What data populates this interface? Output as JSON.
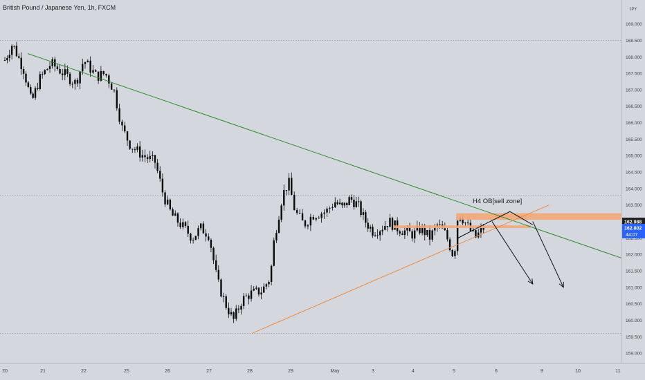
{
  "title": "British Pound / Japanese Yen, 1h, FXCM",
  "currency": "JPY",
  "colors": {
    "background": "#d4d7dd",
    "candle": "#0a0a0a",
    "trendline_down": "#2e8b2e",
    "trendline_up": "#f08a3c",
    "zone": "#f2a877",
    "arrow": "#111111",
    "price_tag": "#1f1f1f",
    "live_tag": "#2962ff",
    "axis_text": "#444444",
    "reference_line": "#8c8f96"
  },
  "chart_data": {
    "type": "candlestick",
    "title": "British Pound / Japanese Yen, 1h, FXCM",
    "y_unit": "JPY",
    "ylim": [
      158.5,
      169.6
    ],
    "y_ticks": [
      "169.000",
      "168.500",
      "168.000",
      "167.500",
      "167.000",
      "166.500",
      "166.000",
      "165.500",
      "165.000",
      "164.500",
      "164.000",
      "163.500",
      "163.000",
      "162.500",
      "162.000",
      "161.500",
      "161.000",
      "160.500",
      "160.000",
      "159.500",
      "159.000"
    ],
    "x_ticks": [
      "20",
      "21",
      "22",
      "25",
      "26",
      "27",
      "28",
      "29",
      "May",
      "3",
      "4",
      "5",
      "6",
      "9",
      "10",
      "11"
    ],
    "price_path": [
      [
        20.0,
        167.9
      ],
      [
        20.2,
        168.4
      ],
      [
        20.5,
        167.6
      ],
      [
        20.7,
        166.6
      ],
      [
        20.9,
        167.3
      ],
      [
        21.2,
        167.8
      ],
      [
        21.5,
        167.5
      ],
      [
        21.8,
        167.2
      ],
      [
        22.0,
        167.9
      ],
      [
        22.3,
        167.4
      ],
      [
        22.5,
        167.5
      ],
      [
        22.7,
        167.0
      ],
      [
        22.9,
        165.8
      ],
      [
        23.1,
        165.3
      ],
      [
        23.4,
        165.0
      ],
      [
        23.7,
        164.8
      ],
      [
        23.9,
        163.8
      ],
      [
        24.1,
        163.2
      ],
      [
        24.4,
        162.8
      ],
      [
        24.6,
        162.5
      ],
      [
        24.8,
        162.8
      ],
      [
        25.0,
        162.6
      ],
      [
        25.2,
        161.2
      ],
      [
        25.4,
        160.5
      ],
      [
        25.6,
        160.0
      ],
      [
        25.8,
        160.6
      ],
      [
        26.0,
        160.8
      ],
      [
        26.3,
        160.9
      ],
      [
        26.5,
        161.3
      ],
      [
        26.6,
        162.5
      ],
      [
        26.8,
        163.8
      ],
      [
        26.95,
        164.2
      ],
      [
        27.1,
        163.3
      ],
      [
        27.3,
        162.9
      ],
      [
        27.5,
        163.2
      ],
      [
        27.8,
        163.3
      ],
      [
        28.0,
        163.6
      ],
      [
        28.2,
        163.4
      ],
      [
        28.4,
        163.7
      ],
      [
        28.6,
        163.5
      ],
      [
        28.8,
        163.0
      ],
      [
        29.0,
        162.7
      ],
      [
        29.2,
        162.8
      ],
      [
        29.4,
        163.0
      ],
      [
        29.6,
        162.8
      ],
      [
        29.8,
        162.7
      ],
      [
        30.0,
        162.6
      ],
      [
        30.2,
        162.8
      ],
      [
        30.4,
        162.5
      ],
      [
        30.6,
        162.9
      ],
      [
        30.8,
        162.6
      ],
      [
        31.0,
        161.9
      ],
      [
        31.1,
        163.3
      ],
      [
        31.3,
        162.9
      ],
      [
        31.5,
        162.5
      ],
      [
        31.7,
        162.8
      ]
    ],
    "annotations": [
      {
        "type": "trendline",
        "label": "descending trendline",
        "points": [
          [
            20.6,
            168.1
          ],
          [
            35.3,
            161.8
          ]
        ]
      },
      {
        "type": "trendline",
        "label": "ascending trendline",
        "points": [
          [
            26.05,
            159.6
          ],
          [
            33.2,
            163.5
          ]
        ]
      },
      {
        "type": "zone",
        "label": "H4 OB[sell zone]",
        "x": [
          31.05,
          35.9
        ],
        "y": [
          163.05,
          163.25
        ]
      },
      {
        "type": "zone",
        "label": "",
        "x": [
          29.5,
          32.75
        ],
        "y": [
          162.8,
          162.88
        ]
      },
      {
        "type": "reference_line",
        "y": 168.5
      },
      {
        "type": "reference_line",
        "y": 163.8
      },
      {
        "type": "reference_line",
        "y": 159.6
      }
    ],
    "arrows": [
      [
        [
          31.9,
          163.0
        ],
        [
          32.8,
          161.1
        ]
      ],
      [
        [
          32.8,
          163.0
        ],
        [
          33.6,
          161.0
        ]
      ]
    ],
    "projection": [
      [
        31.1,
        162.5
      ],
      [
        31.7,
        162.9
      ],
      [
        32.3,
        163.3
      ],
      [
        32.8,
        162.9
      ]
    ],
    "annotation_text": "H4 OB[sell zone]",
    "last_price": "162.988",
    "live_price": "162.802",
    "countdown": "44:07"
  }
}
